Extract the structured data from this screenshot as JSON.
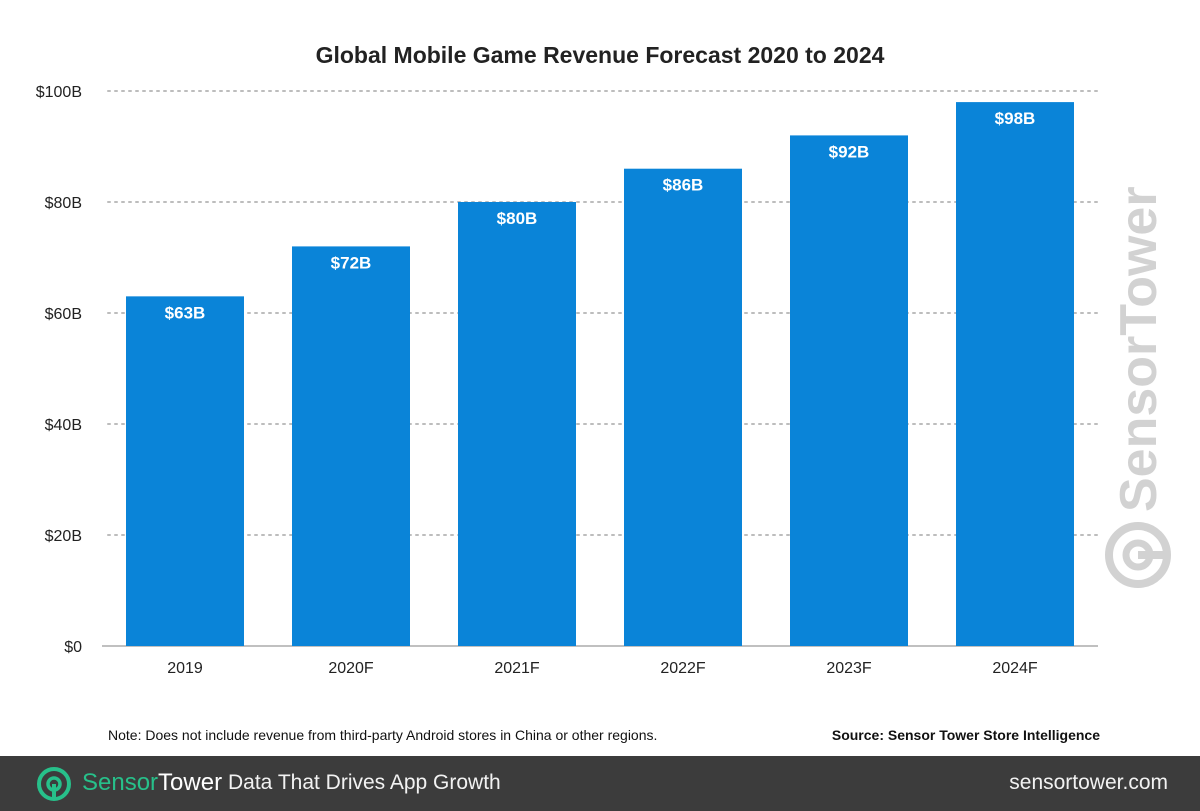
{
  "chart_data": {
    "type": "bar",
    "title": "Global Mobile Game Revenue Forecast 2020 to 2024",
    "categories": [
      "2019",
      "2020F",
      "2021F",
      "2022F",
      "2023F",
      "2024F"
    ],
    "values": [
      63,
      72,
      80,
      86,
      92,
      98
    ],
    "value_labels": [
      "$63B",
      "$72B",
      "$80B",
      "$86B",
      "$92B",
      "$98B"
    ],
    "ylim": [
      0,
      100
    ],
    "yticks": [
      0,
      20,
      40,
      60,
      80,
      100
    ],
    "ytick_labels": [
      "$0",
      "$20B",
      "$40B",
      "$60B",
      "$80B",
      "$100B"
    ],
    "xlabel": "",
    "ylabel": "",
    "grid": true,
    "bar_color": "#0a84d8",
    "gridline_color": "#bdbdbd"
  },
  "watermark": {
    "brand": "SensorTower",
    "icon": "sensortower-logo-icon"
  },
  "note": "Note: Does not include revenue from third-party Android stores in China or other regions.",
  "source": "Source: Sensor Tower Store Intelligence",
  "footer": {
    "brand_part1": "Sensor",
    "brand_part2": "Tower",
    "tagline": "Data That Drives App Growth",
    "url": "sensortower.com",
    "accent_color": "#27c08a",
    "background_color": "#3c3c3c"
  }
}
